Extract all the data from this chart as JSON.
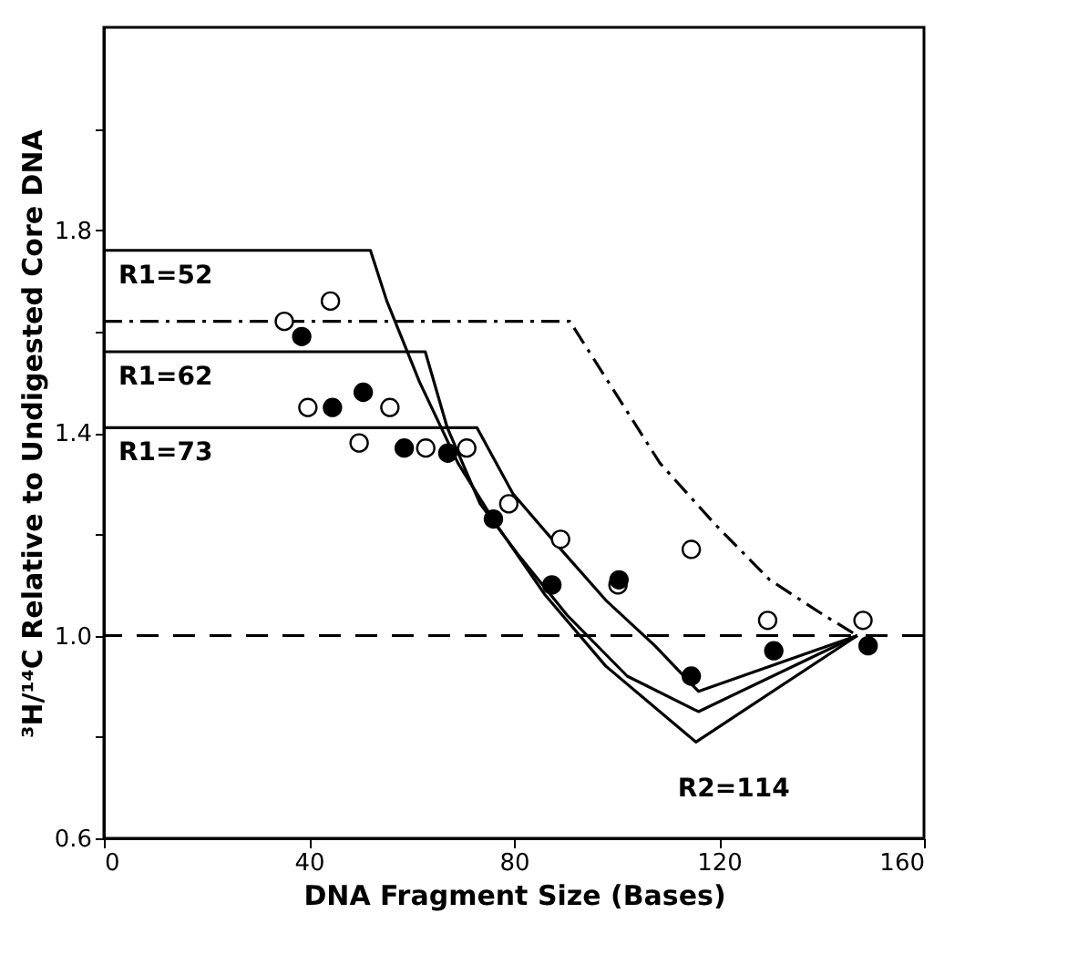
{
  "chart_data": {
    "type": "line",
    "xlabel": "DNA Fragment Size (Bases)",
    "ylabel": "³H/¹⁴C Relative to Undigested Core DNA",
    "xlim": [
      0,
      160
    ],
    "xticks": [
      0,
      40,
      80,
      120,
      160
    ],
    "ylim": [
      0.6,
      2.2
    ],
    "yticks": [
      0.6,
      {
        "value": 0.8,
        "label": null
      },
      {
        "value": 1.0,
        "label": "1.0"
      },
      {
        "value": 1.2,
        "label": null
      },
      1.4,
      {
        "value": 1.6,
        "label": null
      },
      1.8,
      {
        "value": 2.0,
        "label": null
      }
    ],
    "grid": false,
    "series": [
      {
        "color": "#000000",
        "line_style": "solid",
        "marker": "none",
        "x": [
          0,
          52,
          55.2,
          61.6,
          69.1,
          76.5,
          86.1,
          97.9,
          115.5,
          147
        ],
        "values": [
          1.76,
          1.76,
          1.66,
          1.5,
          1.34,
          1.22,
          1.08,
          0.94,
          0.79,
          1.0
        ]
      },
      {
        "color": "#000000",
        "line_style": "solid",
        "marker": "none",
        "x": [
          0,
          62.7,
          67.0,
          73.4,
          80.8,
          90.4,
          102.1,
          116.0,
          147
        ],
        "values": [
          1.56,
          1.56,
          1.41,
          1.26,
          1.16,
          1.04,
          0.92,
          0.85,
          1.0
        ]
      },
      {
        "color": "#000000",
        "line_style": "solid",
        "marker": "none",
        "x": [
          0,
          72.8,
          79.8,
          88.3,
          97.9,
          107.5,
          116.0,
          147
        ],
        "values": [
          1.41,
          1.41,
          1.28,
          1.18,
          1.07,
          0.98,
          0.89,
          1.0
        ]
      },
      {
        "color": "#000000",
        "line_style": "dashdot",
        "marker": "none",
        "x": [
          0,
          90.9,
          108.5,
          119.2,
          129.9,
          140.5,
          147
        ],
        "values": [
          1.62,
          1.62,
          1.34,
          1.22,
          1.11,
          1.04,
          1.0
        ]
      },
      {
        "type": "scatter",
        "color": "#ffffff",
        "marker": "circle",
        "x": [
          35.2,
          44.2,
          39.8,
          55.8,
          49.8,
          62.8,
          70.8,
          79.0,
          89.1,
          100.3,
          114.6,
          129.5,
          148.1
        ],
        "values": [
          1.62,
          1.66,
          1.45,
          1.45,
          1.38,
          1.37,
          1.37,
          1.26,
          1.19,
          1.1,
          1.17,
          1.03,
          1.03
        ]
      },
      {
        "type": "scatter",
        "color": "#000000",
        "marker": "circle",
        "x": [
          38.6,
          44.6,
          50.6,
          58.6,
          67.1,
          76.0,
          87.4,
          100.5,
          114.6,
          130.7,
          149.1
        ],
        "values": [
          1.59,
          1.45,
          1.48,
          1.37,
          1.36,
          1.23,
          1.1,
          1.11,
          0.92,
          0.97,
          0.98
        ]
      }
    ],
    "ref_lines": [
      {
        "axis": "y",
        "value": 1.0,
        "color": "#000000",
        "line_style": "dashed"
      }
    ],
    "annotations": [
      "R1=52",
      "R1=62",
      "R1=73",
      "R2=114"
    ]
  }
}
